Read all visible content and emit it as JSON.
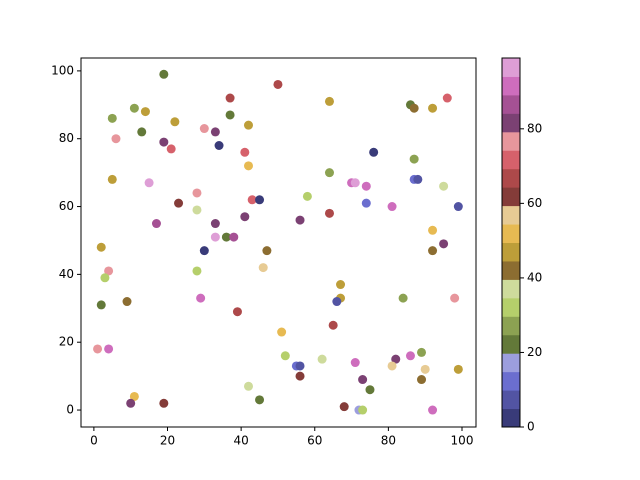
{
  "chart_data": {
    "type": "scatter",
    "x": [
      19,
      50,
      96,
      37,
      64,
      11,
      14,
      86,
      87,
      92,
      5,
      22,
      37,
      42,
      13,
      30,
      33,
      6,
      19,
      21,
      34,
      41,
      76,
      87,
      42,
      64,
      5,
      15,
      70,
      71,
      74,
      87,
      88,
      95,
      28,
      43,
      45,
      23,
      58,
      74,
      81,
      99,
      28,
      64,
      41,
      56,
      17,
      33,
      92,
      33,
      36,
      38,
      95,
      2,
      30,
      47,
      92,
      4,
      3,
      28,
      46,
      67,
      2,
      9,
      29,
      67,
      66,
      84,
      98,
      39,
      65,
      51,
      1,
      4,
      52,
      62,
      86,
      89,
      71,
      82,
      55,
      56,
      81,
      90,
      99,
      56,
      73,
      89,
      42,
      75,
      11,
      45,
      10,
      19,
      68,
      72,
      73,
      92
    ],
    "values": [
      99,
      96,
      92,
      92,
      91,
      89,
      88,
      90,
      89,
      89,
      86,
      85,
      87,
      84,
      82,
      83,
      82,
      80,
      79,
      77,
      78,
      76,
      76,
      74,
      72,
      70,
      68,
      67,
      67,
      67,
      66,
      68,
      68,
      66,
      64,
      62,
      62,
      61,
      63,
      61,
      60,
      60,
      59,
      58,
      57,
      56,
      55,
      55,
      53,
      51,
      51,
      51,
      49,
      48,
      47,
      47,
      47,
      41,
      39,
      41,
      42,
      37,
      31,
      32,
      33,
      33,
      32,
      33,
      33,
      29,
      25,
      23,
      18,
      18,
      16,
      15,
      16,
      17,
      14,
      15,
      13,
      13,
      13,
      12,
      12,
      10,
      9,
      9,
      7,
      6,
      4,
      3,
      2,
      2,
      1,
      0,
      0,
      0
    ],
    "color_values": [
      22,
      67,
      72,
      67,
      47,
      27,
      47,
      22,
      42,
      47,
      27,
      47,
      22,
      47,
      22,
      77,
      82,
      77,
      82,
      72,
      2,
      72,
      2,
      27,
      52,
      27,
      47,
      97,
      92,
      97,
      92,
      12,
      7,
      37,
      77,
      72,
      2,
      62,
      32,
      12,
      92,
      7,
      37,
      67,
      82,
      82,
      87,
      82,
      52,
      97,
      22,
      87,
      82,
      47,
      2,
      42,
      42,
      77,
      32,
      32,
      57,
      47,
      22,
      42,
      92,
      47,
      7,
      27,
      77,
      67,
      67,
      52,
      77,
      92,
      32,
      37,
      92,
      27,
      92,
      82,
      12,
      7,
      57,
      57,
      47,
      62,
      82,
      42,
      37,
      22,
      52,
      22,
      82,
      62,
      62,
      17,
      32,
      92
    ],
    "colormap": [
      "#393b79",
      "#5254a3",
      "#6b6ecf",
      "#9c9ede",
      "#637939",
      "#8ca252",
      "#b5cf6b",
      "#cedb9c",
      "#8c6d31",
      "#bd9e39",
      "#e7ba52",
      "#e7cb94",
      "#843c39",
      "#ad494a",
      "#d6616b",
      "#e7969c",
      "#7b4173",
      "#a55194",
      "#ce6dbd",
      "#de9ed6"
    ],
    "clim": [
      0,
      99
    ],
    "cticks": [
      0,
      20,
      40,
      60,
      80
    ],
    "xlim": [
      -3.5,
      103.8
    ],
    "ylim": [
      -5,
      103.8
    ],
    "xticks": [
      0,
      20,
      40,
      60,
      80,
      100
    ],
    "yticks": [
      0,
      20,
      40,
      60,
      80,
      100
    ]
  }
}
